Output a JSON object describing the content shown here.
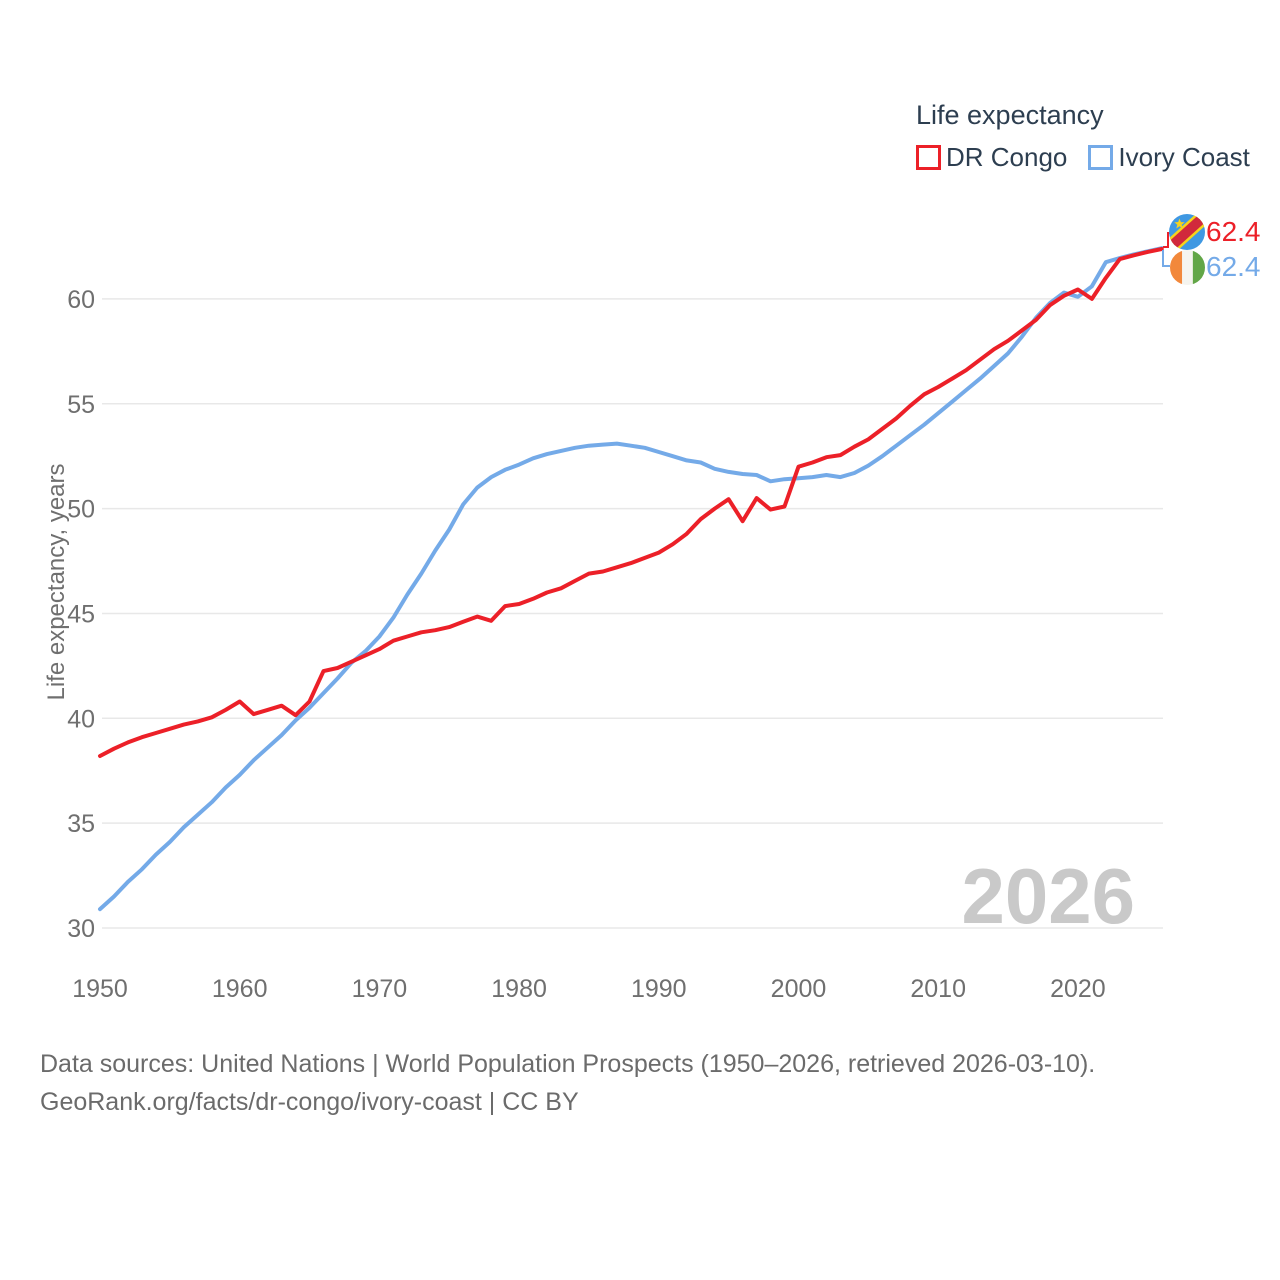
{
  "legend": {
    "title": "Life expectancy",
    "items": [
      {
        "label": "DR Congo",
        "color": "#ec2028"
      },
      {
        "label": "Ivory Coast",
        "color": "#74aae8"
      }
    ]
  },
  "chart_data": {
    "type": "line",
    "title": "Life expectancy",
    "xlabel": "",
    "ylabel": "Life expectancy, years",
    "x_start": 1950,
    "x_end": 2026,
    "x_ticks": [
      1950,
      1960,
      1970,
      1980,
      1990,
      2000,
      2010,
      2020
    ],
    "y_ticks": [
      30,
      35,
      40,
      45,
      50,
      55,
      60
    ],
    "ylim": [
      28.5,
      63.5
    ],
    "grid": true,
    "legend_position": "top-right",
    "watermark": "2026",
    "series": [
      {
        "name": "Ivory Coast",
        "color": "#74aae8",
        "values": [
          30.9,
          31.5,
          32.2,
          32.8,
          33.5,
          34.1,
          34.8,
          35.4,
          36.0,
          36.7,
          37.3,
          38.0,
          38.6,
          39.2,
          39.9,
          40.5,
          41.2,
          41.9,
          42.65,
          43.2,
          43.9,
          44.8,
          45.9,
          46.9,
          48.0,
          49.0,
          50.2,
          51.0,
          51.5,
          51.85,
          52.1,
          52.4,
          52.6,
          52.75,
          52.9,
          53.0,
          53.05,
          53.1,
          53.0,
          52.9,
          52.7,
          52.5,
          52.3,
          52.2,
          51.9,
          51.75,
          51.65,
          51.6,
          51.3,
          51.4,
          51.45,
          51.5,
          51.6,
          51.5,
          51.7,
          52.05,
          52.5,
          53.0,
          53.5,
          54.0,
          54.55,
          55.1,
          55.65,
          56.2,
          56.8,
          57.4,
          58.2,
          59.1,
          59.8,
          60.3,
          60.1,
          60.6,
          61.75,
          61.95,
          62.12,
          62.27,
          62.42
        ]
      },
      {
        "name": "DR Congo",
        "color": "#ec2028",
        "values": [
          38.2,
          38.55,
          38.85,
          39.1,
          39.3,
          39.5,
          39.7,
          39.85,
          40.05,
          40.4,
          40.8,
          40.2,
          40.4,
          40.6,
          40.15,
          40.8,
          42.25,
          42.4,
          42.7,
          43.0,
          43.3,
          43.7,
          43.9,
          44.1,
          44.2,
          44.35,
          44.6,
          44.85,
          44.65,
          45.35,
          45.45,
          45.7,
          46.0,
          46.2,
          46.55,
          46.9,
          47.0,
          47.2,
          47.4,
          47.65,
          47.9,
          48.3,
          48.8,
          49.5,
          50.0,
          50.45,
          49.4,
          50.5,
          49.95,
          50.1,
          52.0,
          52.2,
          52.45,
          52.55,
          52.95,
          53.3,
          53.8,
          54.3,
          54.9,
          55.45,
          55.8,
          56.2,
          56.6,
          57.1,
          57.6,
          58.0,
          58.5,
          59.0,
          59.7,
          60.15,
          60.45,
          60.0,
          61.0,
          61.9,
          62.08,
          62.24,
          62.38
        ]
      }
    ],
    "end_labels": [
      {
        "series": "DR Congo",
        "value": "62.4"
      },
      {
        "series": "Ivory Coast",
        "value": "62.4"
      }
    ]
  },
  "flags": {
    "dr_congo": {
      "blue": "#3f98e2",
      "yellow": "#f6d31c",
      "red": "#d1293c"
    },
    "ivory_coast": {
      "orange": "#f2883b",
      "white": "#f5f4ef",
      "green": "#62a647"
    }
  },
  "styles": {
    "grid_color": "#e8e8e8",
    "tick_color": "#6f6f6f",
    "watermark_color": "#c9c9c9",
    "legend_text_color": "#2d3e50"
  },
  "footer": {
    "line1": "Data sources: United Nations | World Population Prospects (1950–2026, retrieved 2026-03-10).",
    "line2": "GeoRank.org/facts/dr-congo/ivory-coast | CC BY"
  }
}
